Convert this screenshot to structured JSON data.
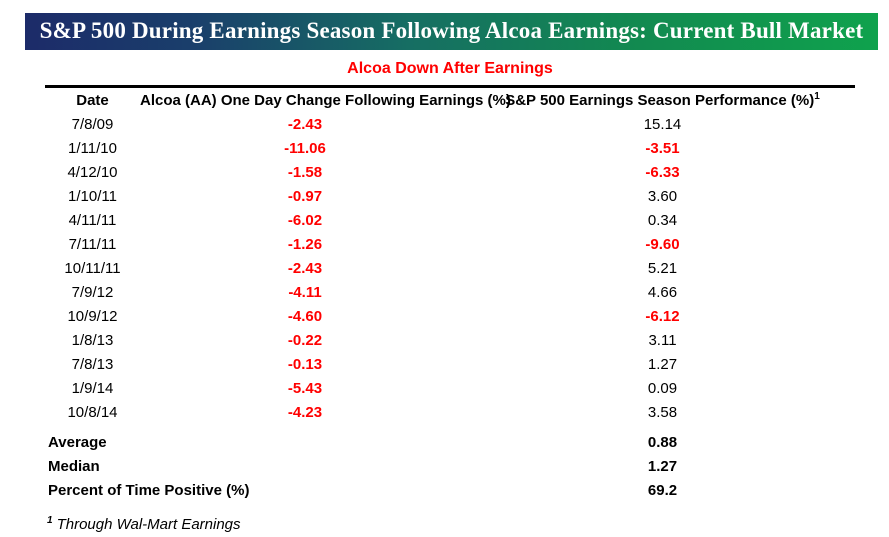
{
  "banner": {
    "title": "S&P 500 During Earnings Season Following Alcoa Earnings: Current Bull Market",
    "bg_gradient_left": "#1c2b69",
    "bg_gradient_mid": "#166e63",
    "bg_gradient_right": "#0fa24d",
    "text_color": "#ffffff"
  },
  "subtitle": {
    "text": "Alcoa Down After Earnings",
    "color": "#ff0000"
  },
  "table": {
    "columns": [
      "Date",
      "Alcoa (AA) One Day Change Following Earnings (%)",
      "S&P 500 Earnings Season Performance (%)"
    ],
    "footnote_marker": "1",
    "rows": [
      {
        "date": "7/8/09",
        "alcoa": "-2.43",
        "sp500": "15.14"
      },
      {
        "date": "1/11/10",
        "alcoa": "-11.06",
        "sp500": "-3.51"
      },
      {
        "date": "4/12/10",
        "alcoa": "-1.58",
        "sp500": "-6.33"
      },
      {
        "date": "1/10/11",
        "alcoa": "-0.97",
        "sp500": "3.60"
      },
      {
        "date": "4/11/11",
        "alcoa": "-6.02",
        "sp500": "0.34"
      },
      {
        "date": "7/11/11",
        "alcoa": "-1.26",
        "sp500": "-9.60"
      },
      {
        "date": "10/11/11",
        "alcoa": "-2.43",
        "sp500": "5.21"
      },
      {
        "date": "7/9/12",
        "alcoa": "-4.11",
        "sp500": "4.66"
      },
      {
        "date": "10/9/12",
        "alcoa": "-4.60",
        "sp500": "-6.12"
      },
      {
        "date": "1/8/13",
        "alcoa": "-0.22",
        "sp500": "3.11"
      },
      {
        "date": "7/8/13",
        "alcoa": "-0.13",
        "sp500": "1.27"
      },
      {
        "date": "1/9/14",
        "alcoa": "-5.43",
        "sp500": "0.09"
      },
      {
        "date": "10/8/14",
        "alcoa": "-4.23",
        "sp500": "3.58"
      }
    ],
    "summary": [
      {
        "label": "Average",
        "value": "0.88"
      },
      {
        "label": "Median",
        "value": "1.27"
      },
      {
        "label": "Percent of Time Positive (%)",
        "value": "69.2"
      }
    ]
  },
  "footnote": {
    "marker": "1",
    "text": "Through Wal-Mart Earnings"
  },
  "colors": {
    "negative_value": "#ff0000",
    "positive_value": "#000000"
  },
  "chart_data": {
    "type": "table",
    "title": "S&P 500 During Earnings Season Following Alcoa Earnings: Current Bull Market",
    "subtitle": "Alcoa Down After Earnings",
    "columns": [
      "Date",
      "Alcoa (AA) One Day Change Following Earnings (%)",
      "S&P 500 Earnings Season Performance (%)"
    ],
    "rows": [
      [
        "7/8/09",
        -2.43,
        15.14
      ],
      [
        "1/11/10",
        -11.06,
        -3.51
      ],
      [
        "4/12/10",
        -1.58,
        -6.33
      ],
      [
        "1/10/11",
        -0.97,
        3.6
      ],
      [
        "4/11/11",
        -6.02,
        0.34
      ],
      [
        "7/11/11",
        -1.26,
        -9.6
      ],
      [
        "10/11/11",
        -2.43,
        5.21
      ],
      [
        "7/9/12",
        -4.11,
        4.66
      ],
      [
        "10/9/12",
        -4.6,
        -6.12
      ],
      [
        "1/8/13",
        -0.22,
        3.11
      ],
      [
        "7/8/13",
        -0.13,
        1.27
      ],
      [
        "1/9/14",
        -5.43,
        0.09
      ],
      [
        "10/8/14",
        -4.23,
        3.58
      ]
    ],
    "summary": {
      "average": 0.88,
      "median": 1.27,
      "percent_of_time_positive": 69.2
    },
    "footnote": "Through Wal-Mart Earnings",
    "style_note": "negative values shown in bold red; positive values in black"
  }
}
